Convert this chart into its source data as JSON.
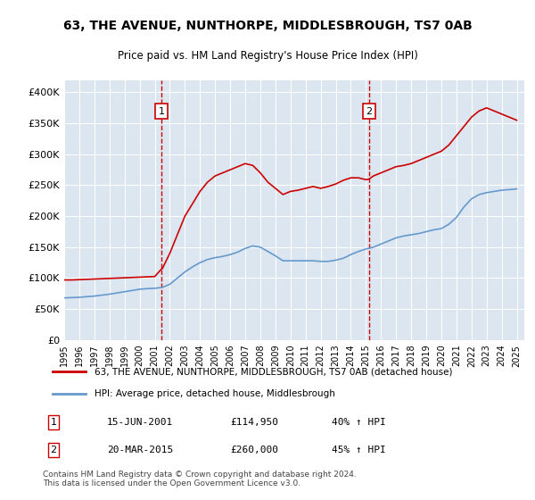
{
  "title": "63, THE AVENUE, NUNTHORPE, MIDDLESBROUGH, TS7 0AB",
  "subtitle": "Price paid vs. HM Land Registry's House Price Index (HPI)",
  "background_color": "#dce6f1",
  "plot_bg_color": "#dce6f1",
  "fig_bg_color": "#ffffff",
  "red_line_color": "#cc0000",
  "blue_line_color": "#6699cc",
  "dashed_line_color": "#cc0000",
  "ylim": [
    0,
    420000
  ],
  "yticks": [
    0,
    50000,
    100000,
    150000,
    200000,
    250000,
    300000,
    350000,
    400000
  ],
  "ytick_labels": [
    "£0",
    "£50K",
    "£100K",
    "£150K",
    "£200K",
    "£250K",
    "£300K",
    "£350K",
    "£400K"
  ],
  "xlim_start": 1995.0,
  "xlim_end": 2025.5,
  "marker1_year": 2001.46,
  "marker2_year": 2015.21,
  "marker1_label": "1",
  "marker2_label": "2",
  "legend_line1": "63, THE AVENUE, NUNTHORPE, MIDDLESBROUGH, TS7 0AB (detached house)",
  "legend_line2": "HPI: Average price, detached house, Middlesbrough",
  "ann1_num": "1",
  "ann1_date": "15-JUN-2001",
  "ann1_price": "£114,950",
  "ann1_hpi": "40% ↑ HPI",
  "ann2_num": "2",
  "ann2_date": "20-MAR-2015",
  "ann2_price": "£260,000",
  "ann2_hpi": "45% ↑ HPI",
  "footer": "Contains HM Land Registry data © Crown copyright and database right 2024.\nThis data is licensed under the Open Government Licence v3.0.",
  "red_x": [
    1995.0,
    1995.5,
    1996.0,
    1996.5,
    1997.0,
    1997.5,
    1998.0,
    1998.5,
    1999.0,
    1999.5,
    2000.0,
    2000.5,
    2001.0,
    2001.46,
    2001.5,
    2002.0,
    2002.5,
    2003.0,
    2003.5,
    2004.0,
    2004.5,
    2005.0,
    2005.5,
    2006.0,
    2006.5,
    2007.0,
    2007.5,
    2008.0,
    2008.5,
    2009.0,
    2009.5,
    2010.0,
    2010.5,
    2011.0,
    2011.5,
    2012.0,
    2012.5,
    2013.0,
    2013.5,
    2014.0,
    2014.5,
    2015.0,
    2015.21,
    2015.5,
    2016.0,
    2016.5,
    2017.0,
    2017.5,
    2018.0,
    2018.5,
    2019.0,
    2019.5,
    2020.0,
    2020.5,
    2021.0,
    2021.5,
    2022.0,
    2022.5,
    2023.0,
    2023.5,
    2024.0,
    2024.5,
    2025.0
  ],
  "red_y": [
    97000,
    97000,
    97500,
    98000,
    98500,
    99000,
    99500,
    100000,
    100500,
    101000,
    101500,
    102000,
    102500,
    114950,
    115000,
    140000,
    170000,
    200000,
    220000,
    240000,
    255000,
    265000,
    270000,
    275000,
    280000,
    285000,
    282000,
    270000,
    255000,
    245000,
    235000,
    240000,
    242000,
    245000,
    248000,
    245000,
    248000,
    252000,
    258000,
    262000,
    262000,
    259000,
    260000,
    265000,
    270000,
    275000,
    280000,
    282000,
    285000,
    290000,
    295000,
    300000,
    305000,
    315000,
    330000,
    345000,
    360000,
    370000,
    375000,
    370000,
    365000,
    360000,
    355000
  ],
  "blue_x": [
    1995.0,
    1995.5,
    1996.0,
    1996.5,
    1997.0,
    1997.5,
    1998.0,
    1998.5,
    1999.0,
    1999.5,
    2000.0,
    2000.5,
    2001.0,
    2001.5,
    2002.0,
    2002.5,
    2003.0,
    2003.5,
    2004.0,
    2004.5,
    2005.0,
    2005.5,
    2006.0,
    2006.5,
    2007.0,
    2007.5,
    2008.0,
    2008.5,
    2009.0,
    2009.5,
    2010.0,
    2010.5,
    2011.0,
    2011.5,
    2012.0,
    2012.5,
    2013.0,
    2013.5,
    2014.0,
    2014.5,
    2015.0,
    2015.5,
    2016.0,
    2016.5,
    2017.0,
    2017.5,
    2018.0,
    2018.5,
    2019.0,
    2019.5,
    2020.0,
    2020.5,
    2021.0,
    2021.5,
    2022.0,
    2022.5,
    2023.0,
    2023.5,
    2024.0,
    2024.5,
    2025.0
  ],
  "blue_y": [
    68000,
    68500,
    69000,
    70000,
    71000,
    72500,
    74000,
    76000,
    78000,
    80000,
    82000,
    83000,
    83500,
    85000,
    90000,
    100000,
    110000,
    118000,
    125000,
    130000,
    133000,
    135000,
    138000,
    142000,
    148000,
    152000,
    150000,
    143000,
    136000,
    128000,
    128000,
    128000,
    128000,
    128000,
    127000,
    127000,
    129000,
    132000,
    138000,
    143000,
    147000,
    150000,
    155000,
    160000,
    165000,
    168000,
    170000,
    172000,
    175000,
    178000,
    180000,
    187000,
    198000,
    215000,
    228000,
    235000,
    238000,
    240000,
    242000,
    243000,
    244000
  ]
}
